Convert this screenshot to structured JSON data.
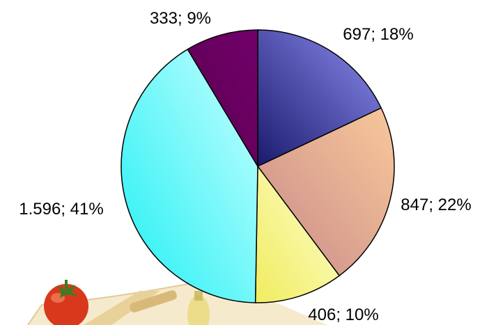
{
  "chart_data": {
    "type": "pie",
    "title": "",
    "slices": [
      {
        "value": 697,
        "label": "697; 18%",
        "percent": 18,
        "color_a": "#1a1a6e",
        "color_b": "#8d8df0"
      },
      {
        "value": 847,
        "label": "847; 22%",
        "percent": 22,
        "color_a": "#c88a8a",
        "color_b": "#f8c89a"
      },
      {
        "value": 406,
        "label": "406; 10%",
        "percent": 10,
        "color_a": "#f0ec60",
        "color_b": "#ffffd0"
      },
      {
        "value": 1596,
        "label": "1.596; 41%",
        "percent": 41,
        "color_a": "#20f0f4",
        "color_b": "#c8ffff"
      },
      {
        "value": 333,
        "label": "333; 9%",
        "percent": 9,
        "color_a": "#5a0050",
        "color_b": "#72006a"
      }
    ],
    "start_angle": "12 o'clock",
    "direction": "clockwise",
    "legend": "none"
  },
  "decoration": {
    "image": "tomato-and-pasta-photo",
    "position": "bottom-left"
  }
}
